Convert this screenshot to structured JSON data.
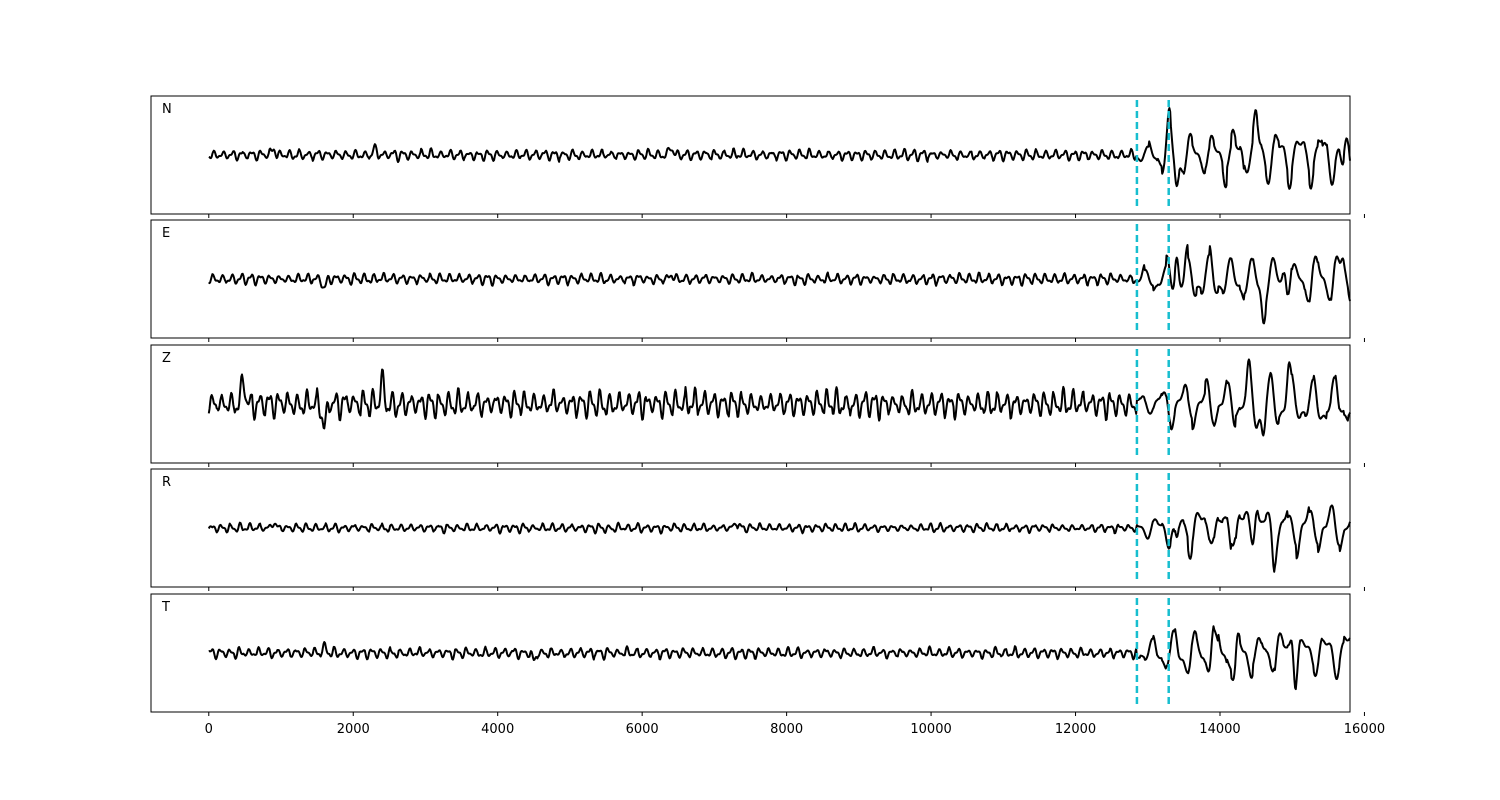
{
  "chart_data": {
    "type": "line",
    "layout": "stacked-panels",
    "title": "",
    "xlabel": "",
    "ylabel": "",
    "xlim": [
      -800,
      15800
    ],
    "x_ticks": [
      0,
      2000,
      4000,
      6000,
      8000,
      10000,
      12000,
      14000,
      16000
    ],
    "x_tick_labels": [
      "0",
      "2000",
      "4000",
      "6000",
      "8000",
      "10000",
      "12000",
      "14000",
      "16000"
    ],
    "n_samples": 15800,
    "y_ticks_shown": false,
    "line_color": "#000000",
    "marker_color": "#17becf",
    "markers": [
      12850,
      13290
    ],
    "panels": [
      {
        "label": "N",
        "noise_amplitude": 0.12,
        "signal_amplitude": 0.6,
        "noise_peaks": [
          {
            "x": 900,
            "y": 0.12
          },
          {
            "x": 2300,
            "y": 0.14
          },
          {
            "x": 6400,
            "y": 0.15
          }
        ],
        "signal_peaks": [
          {
            "x": 13300,
            "y": 0.45
          },
          {
            "x": 13400,
            "y": -0.55
          },
          {
            "x": 14500,
            "y": 0.5
          },
          {
            "x": 15700,
            "y": -0.3
          }
        ]
      },
      {
        "label": "E",
        "noise_amplitude": 0.12,
        "signal_amplitude": 0.6,
        "noise_peaks": [
          {
            "x": 1600,
            "y": -0.18
          },
          {
            "x": 6400,
            "y": 0.08
          }
        ],
        "signal_peaks": [
          {
            "x": 13400,
            "y": 0.55
          },
          {
            "x": 14600,
            "y": -0.55
          },
          {
            "x": 14900,
            "y": 0.45
          },
          {
            "x": 15700,
            "y": 0.3
          }
        ]
      },
      {
        "label": "Z",
        "noise_amplitude": 0.3,
        "signal_amplitude": 0.55,
        "noise_peaks": [
          {
            "x": 480,
            "y": 0.45
          },
          {
            "x": 1600,
            "y": -0.45
          },
          {
            "x": 2400,
            "y": 0.45
          }
        ],
        "signal_peaks": [
          {
            "x": 14400,
            "y": 0.45
          },
          {
            "x": 14600,
            "y": -0.45
          },
          {
            "x": 14950,
            "y": 0.6
          }
        ]
      },
      {
        "label": "R",
        "noise_amplitude": 0.1,
        "signal_amplitude": 0.55,
        "noise_peaks": [
          {
            "x": 900,
            "y": 0.1
          },
          {
            "x": 7300,
            "y": 0.1
          }
        ],
        "signal_peaks": [
          {
            "x": 13400,
            "y": -0.5
          },
          {
            "x": 14500,
            "y": 0.55
          },
          {
            "x": 14750,
            "y": -0.4
          }
        ]
      },
      {
        "label": "T",
        "noise_amplitude": 0.12,
        "signal_amplitude": 0.55,
        "noise_peaks": [
          {
            "x": 1600,
            "y": 0.12
          },
          {
            "x": 4500,
            "y": -0.15
          }
        ],
        "signal_peaks": [
          {
            "x": 13900,
            "y": 0.35
          },
          {
            "x": 14200,
            "y": -0.5
          },
          {
            "x": 15000,
            "y": 0.6
          },
          {
            "x": 15050,
            "y": -0.35
          }
        ]
      }
    ]
  }
}
